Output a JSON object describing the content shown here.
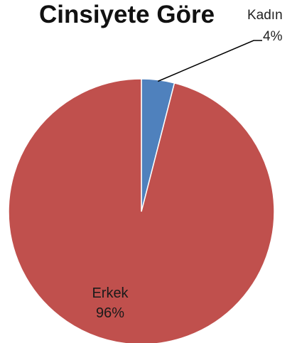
{
  "chart_data": {
    "type": "pie",
    "title": "Cinsiyete Göre",
    "categories": [
      "Kadın",
      "Erkek"
    ],
    "values": [
      4,
      96
    ],
    "value_labels": [
      "4%",
      "96%"
    ],
    "colors": [
      "#4f81bd",
      "#c0504d"
    ],
    "legend": "none",
    "data_labels": "category-and-percent"
  }
}
